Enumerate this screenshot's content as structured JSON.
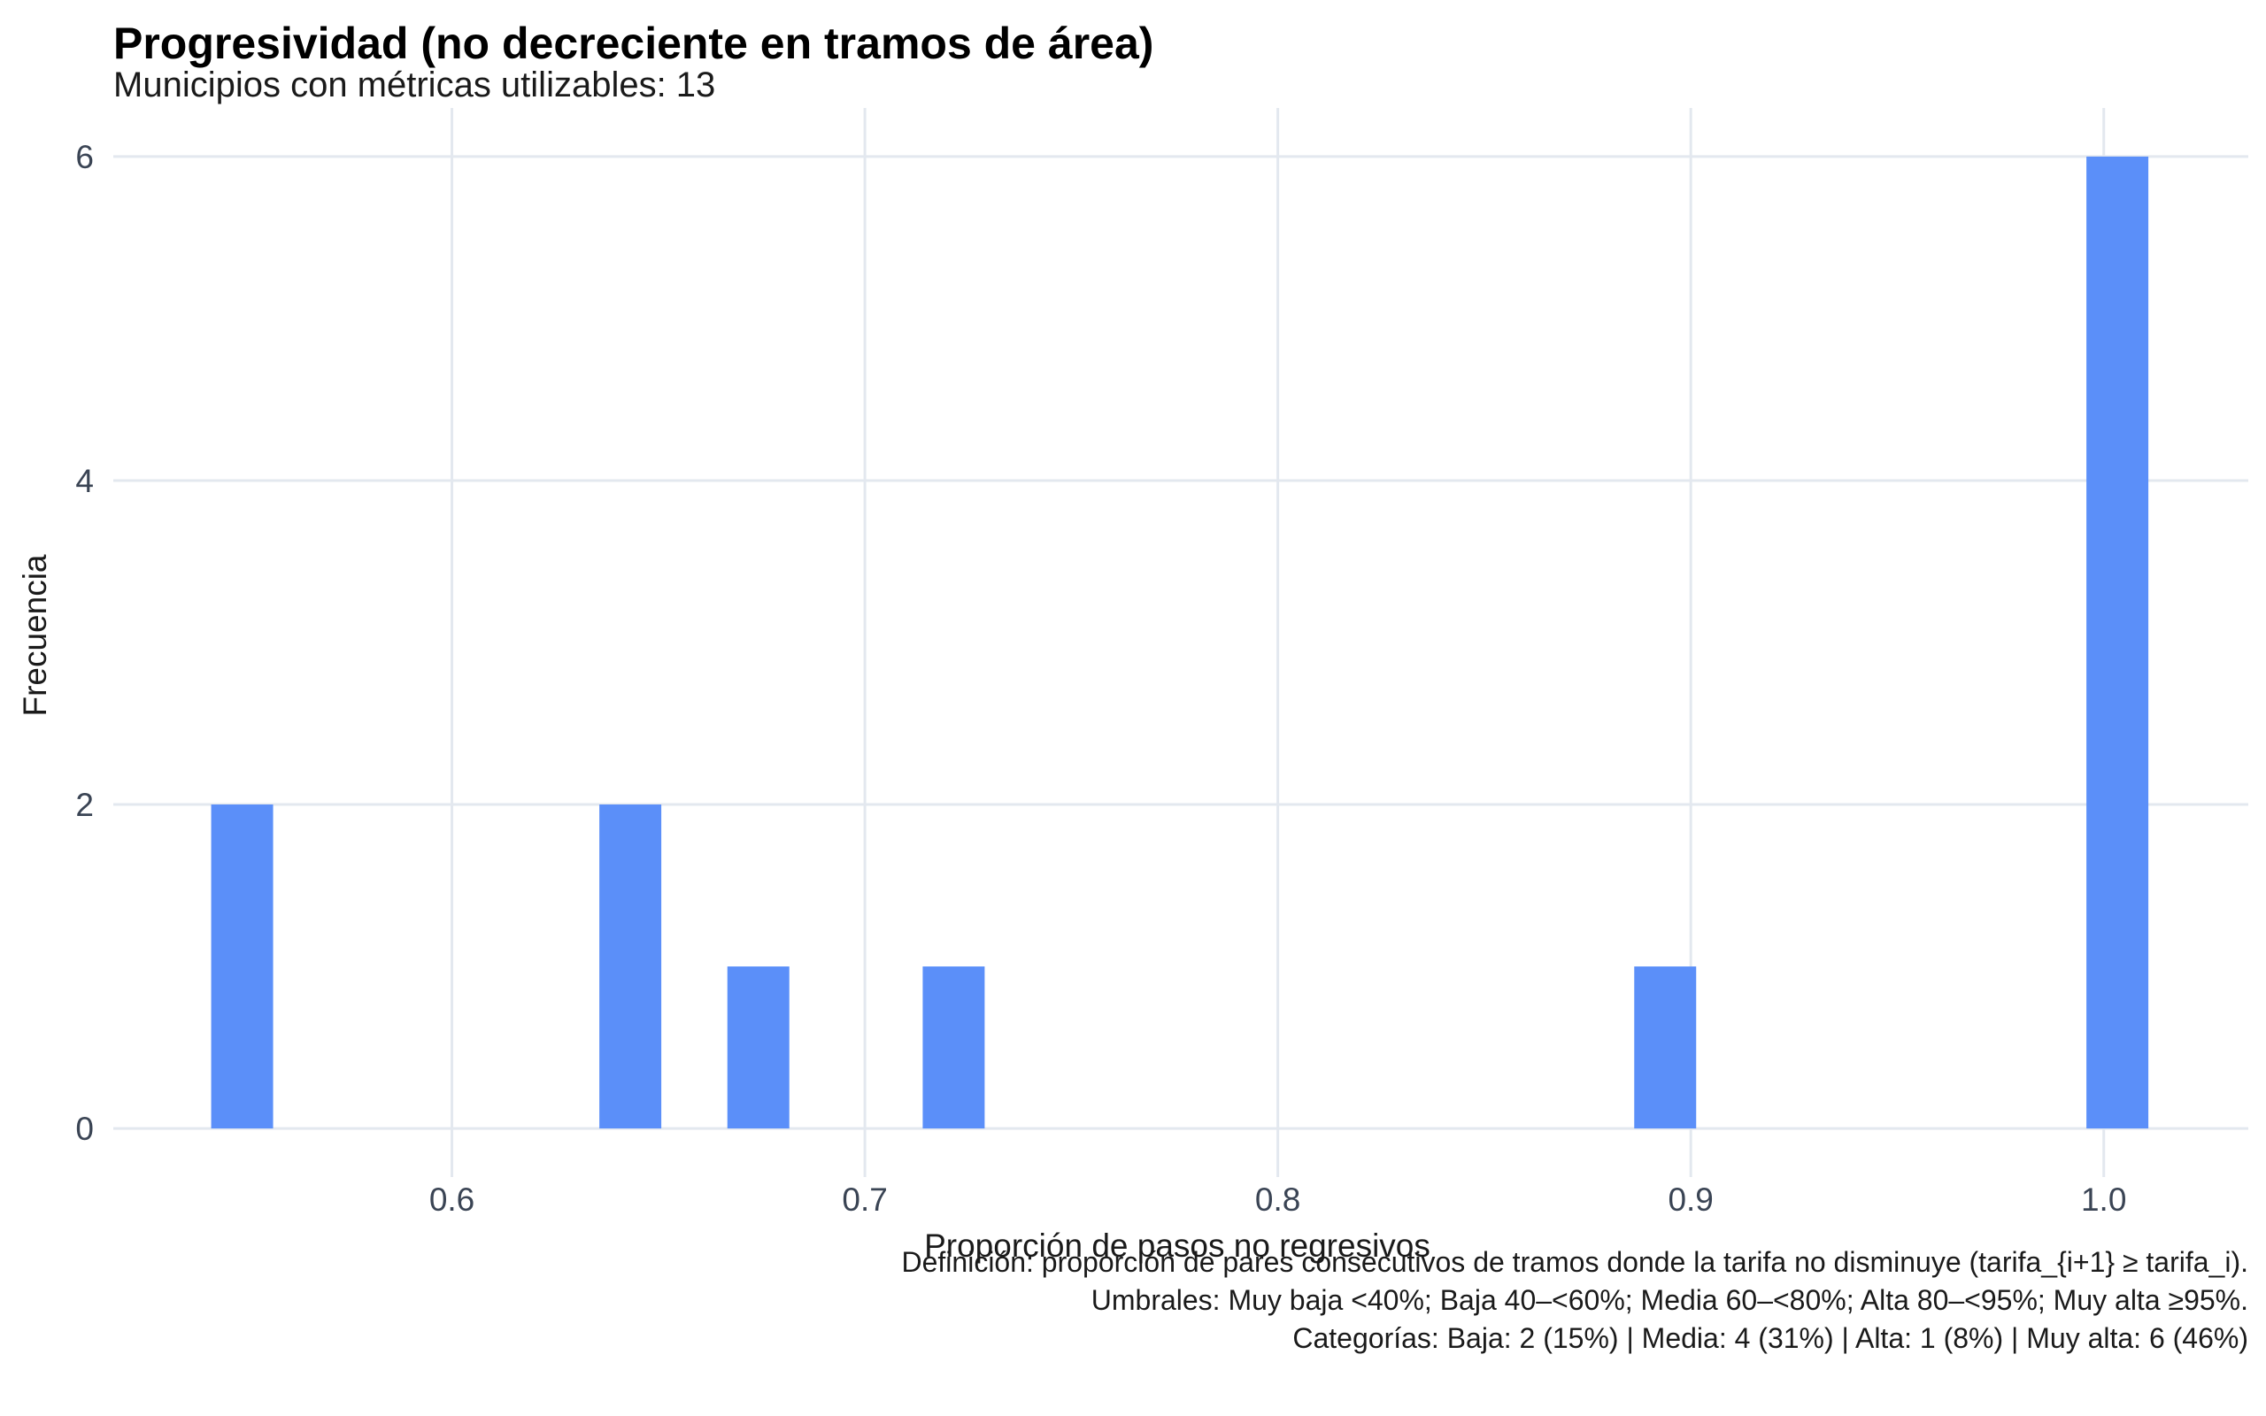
{
  "chart_data": {
    "type": "bar",
    "title": "Progresividad (no decreciente en tramos de área)",
    "subtitle": "Municipios con métricas utilizables: 13",
    "xlabel": "Proporción de pasos no regresivos",
    "ylabel": "Frecuencia",
    "xlim": [
      0.518,
      1.035
    ],
    "ylim": [
      -0.3,
      6.3
    ],
    "x_ticks": [
      0.6,
      0.7,
      0.8,
      0.9,
      1.0
    ],
    "x_tick_labels": [
      "0.6",
      "0.7",
      "0.8",
      "0.9",
      "1.0"
    ],
    "y_ticks": [
      0,
      2,
      4,
      6
    ],
    "y_tick_labels": [
      "0",
      "2",
      "4",
      "6"
    ],
    "grid": true,
    "bar_color": "#5b8ff9",
    "bins": [
      {
        "x0": 0.5417,
        "x1": 0.5567,
        "count": 2
      },
      {
        "x0": 0.6357,
        "x1": 0.6507,
        "count": 2
      },
      {
        "x0": 0.6667,
        "x1": 0.6817,
        "count": 1
      },
      {
        "x0": 0.714,
        "x1": 0.729,
        "count": 1
      },
      {
        "x0": 0.8863,
        "x1": 0.9013,
        "count": 1
      },
      {
        "x0": 0.9958,
        "x1": 1.0108,
        "count": 6
      }
    ],
    "caption": [
      "Definición: proporción de pares consecutivos de tramos donde la tarifa no disminuye (tarifa_{i+1} ≥ tarifa_i).",
      "Umbrales: Muy baja <40%; Baja 40–<60%; Media 60–<80%; Alta 80–<95%; Muy alta ≥95%.",
      "Categorías: Baja: 2 (15%) | Media: 4 (31%) | Alta: 1 (8%) | Muy alta: 6 (46%)"
    ]
  }
}
